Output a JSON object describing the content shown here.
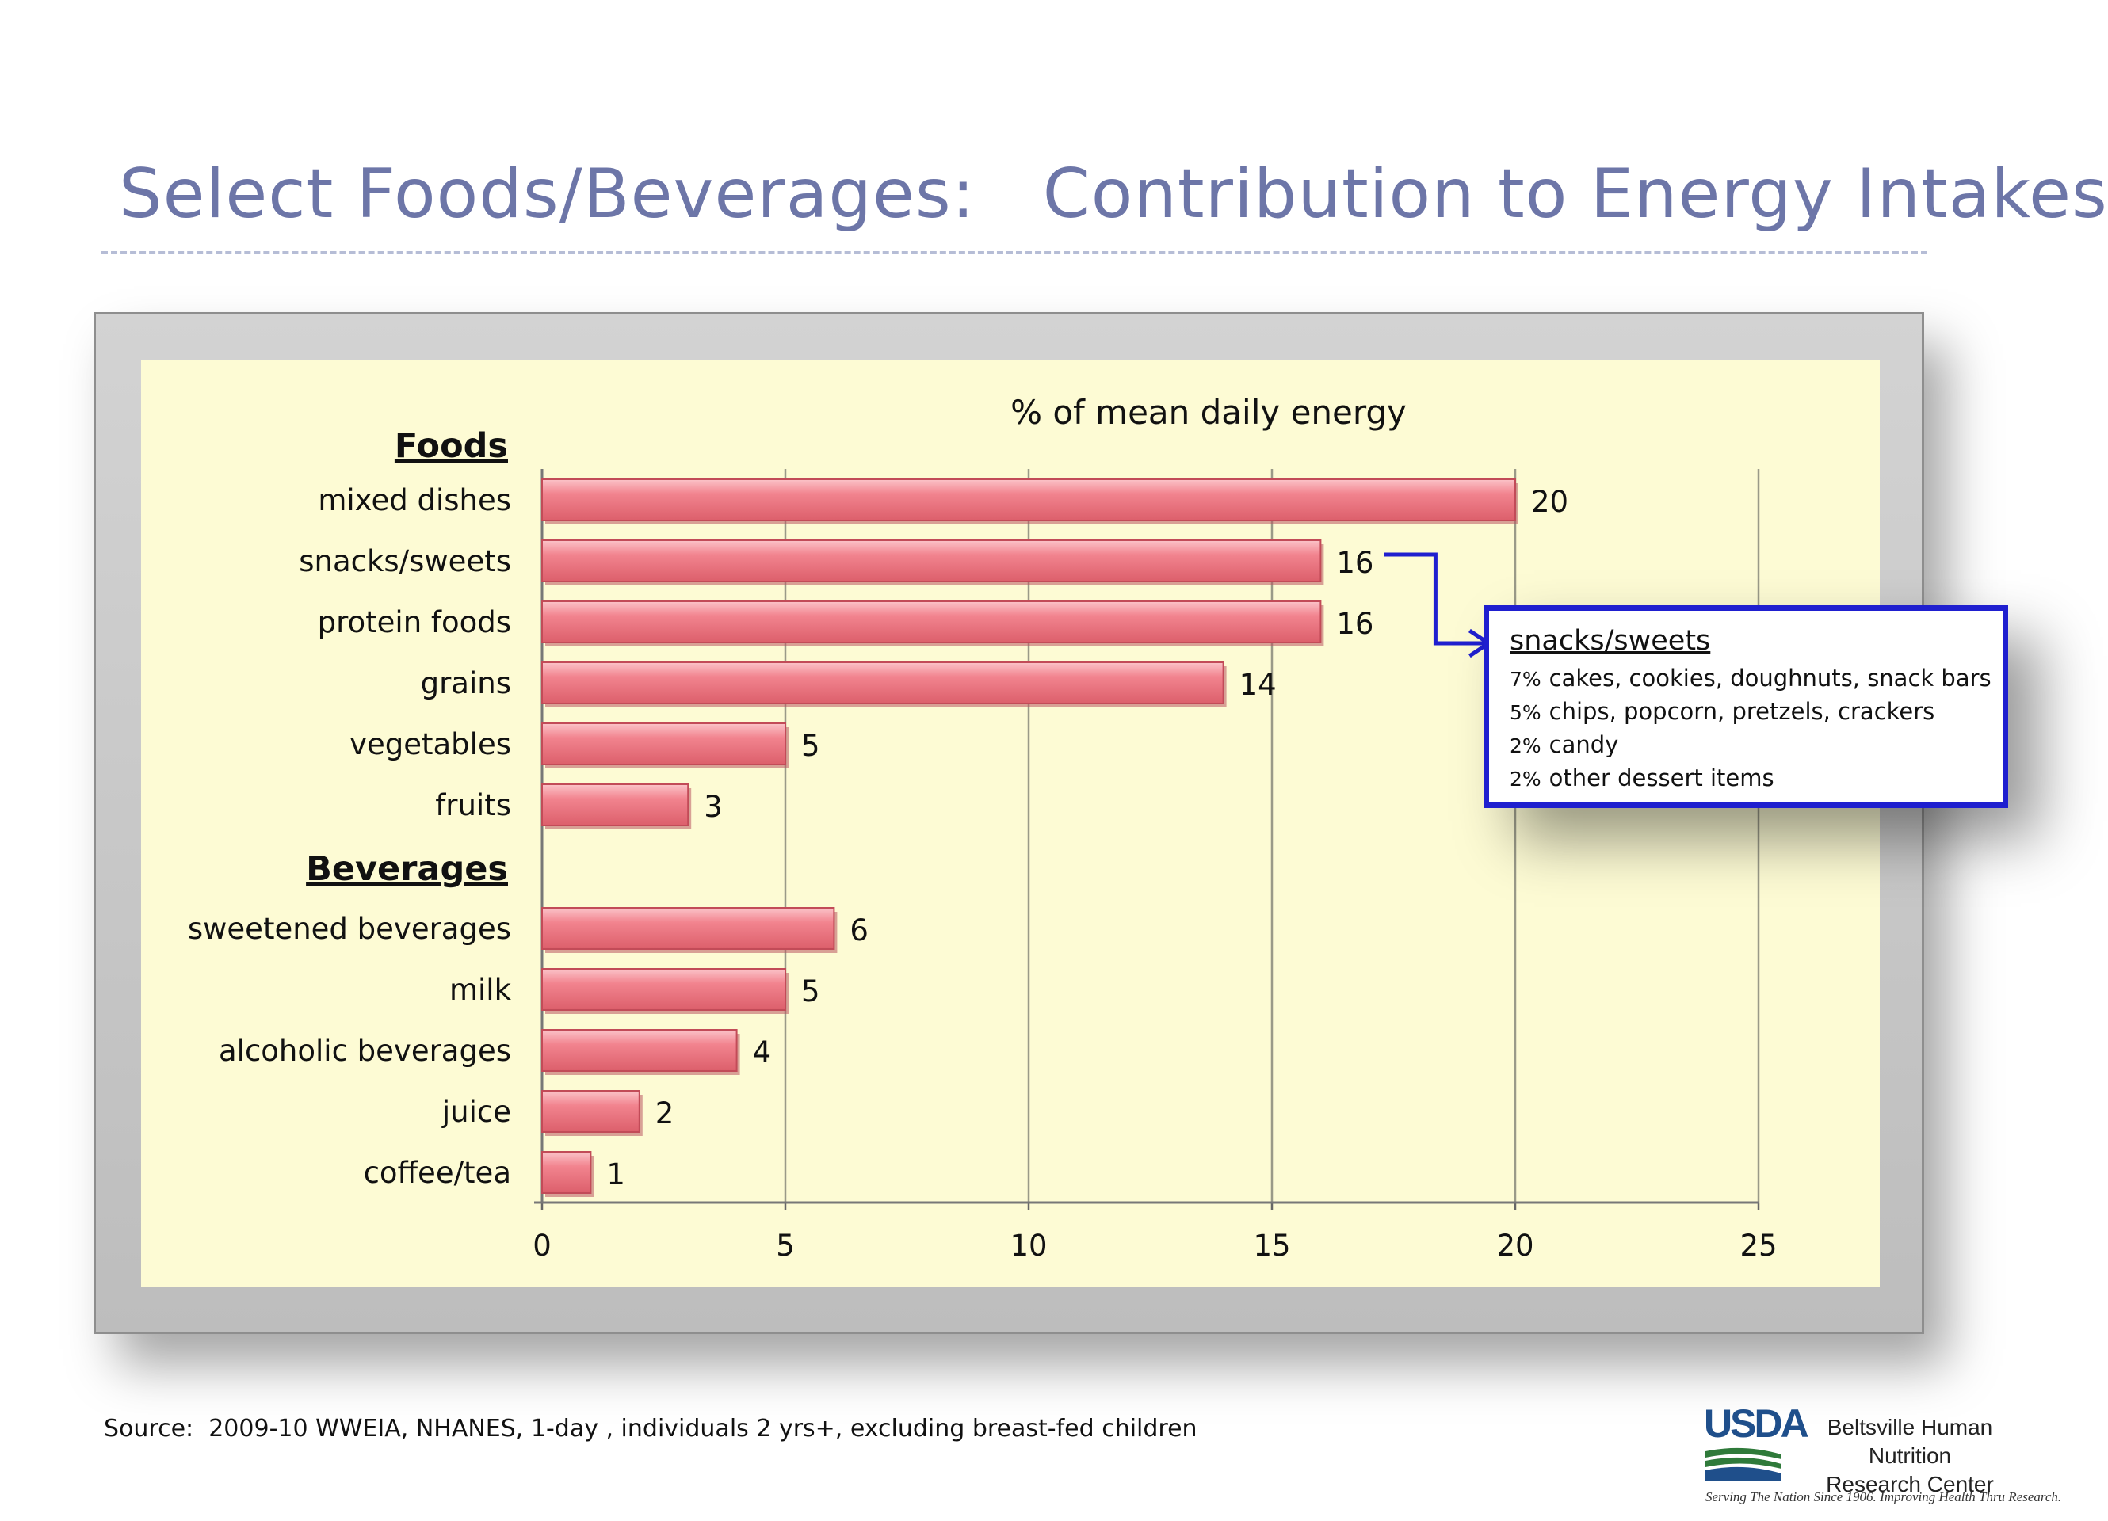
{
  "slide": {
    "title": "Select Foods/Beverages:   Contribution to Energy Intakes",
    "source": "Source:  2009-10 WWEIA, NHANES, 1-day , individuals 2 yrs+, excluding breast-fed children"
  },
  "chart_data": {
    "type": "bar",
    "orientation": "horizontal",
    "title": "% of mean daily energy",
    "xlim": [
      0,
      25
    ],
    "xticks": [
      0,
      5,
      10,
      15,
      20,
      25
    ],
    "grid": true,
    "bar_color": "#f2848f",
    "groups": [
      {
        "name": "Foods",
        "categories": [
          "mixed dishes",
          "snacks/sweets",
          "protein foods",
          "grains",
          "vegetables",
          "fruits"
        ],
        "values": [
          20,
          16,
          16,
          14,
          5,
          3
        ]
      },
      {
        "name": "Beverages",
        "categories": [
          "sweetened beverages",
          "milk",
          "alcoholic beverages",
          "juice",
          "coffee/tea"
        ],
        "values": [
          6,
          5,
          4,
          2,
          1
        ]
      }
    ]
  },
  "callout": {
    "title": "snacks/sweets",
    "connector_color": "#1f1fcf",
    "items": [
      {
        "pct": "7%",
        "text": "cakes, cookies, doughnuts, snack bars"
      },
      {
        "pct": "5%",
        "text": "chips, popcorn, pretzels, crackers"
      },
      {
        "pct": "2%",
        "text": "candy"
      },
      {
        "pct": "2%",
        "text": "other dessert items"
      }
    ]
  },
  "logo": {
    "agency": "USDA",
    "center_line1": "Beltsville Human Nutrition",
    "center_line2": "Research Center",
    "motto": "Serving The Nation Since 1906. Improving Health Thru Research."
  }
}
